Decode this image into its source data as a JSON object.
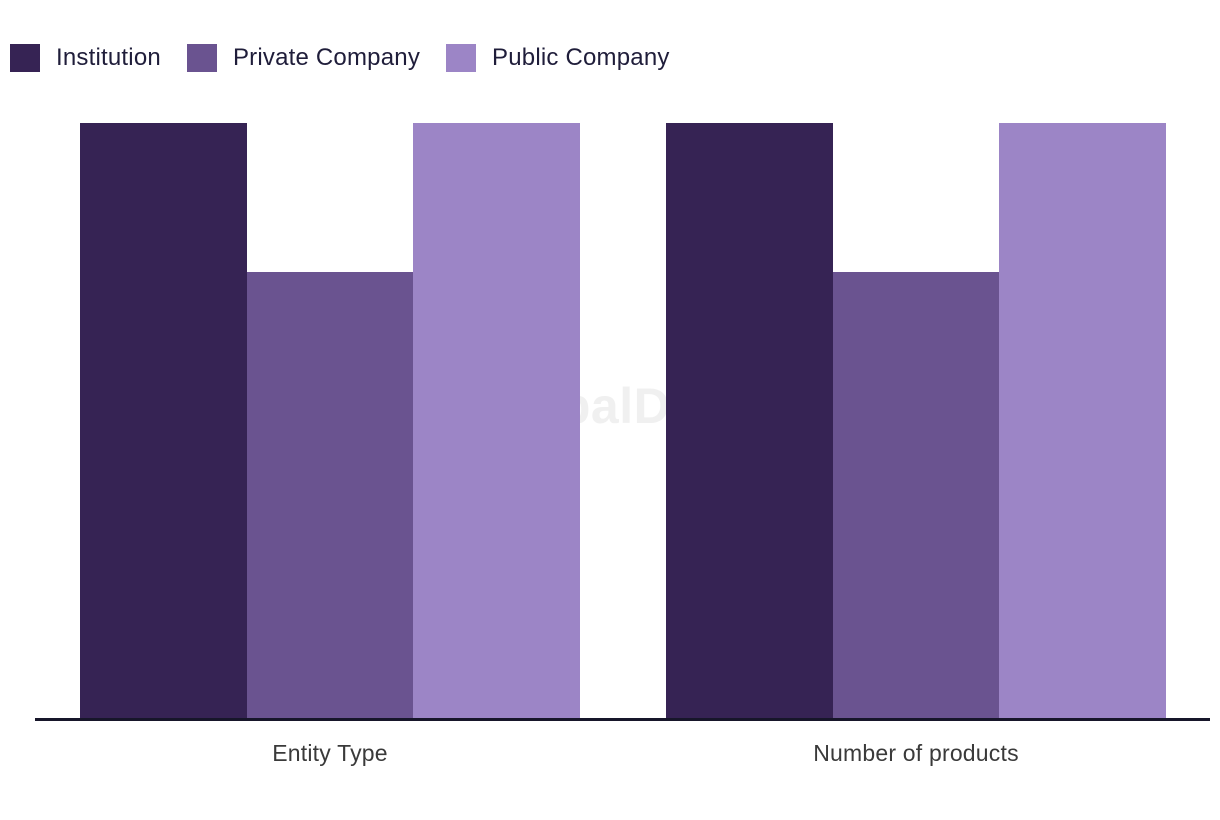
{
  "legend": {
    "items": [
      {
        "label": "Institution",
        "color": "#362354"
      },
      {
        "label": "Private Company",
        "color": "#6A5390"
      },
      {
        "label": "Public Company",
        "color": "#9C85C6"
      }
    ]
  },
  "watermark": {
    "text": "GlobalData"
  },
  "chart_data": {
    "type": "bar",
    "title": "",
    "xlabel": "",
    "ylabel": "",
    "categories": [
      "Entity Type",
      "Number of products"
    ],
    "series": [
      {
        "name": "Institution",
        "color": "#362354",
        "values": [
          4,
          4
        ]
      },
      {
        "name": "Private Company",
        "color": "#6A5390",
        "values": [
          3,
          3
        ]
      },
      {
        "name": "Public Company",
        "color": "#9C85C6",
        "values": [
          4,
          4
        ]
      }
    ],
    "ylim": [
      0,
      4
    ],
    "y_axis_visible": false,
    "gridlines": false,
    "legend_position": "top-left",
    "watermark_text": "GlobalData",
    "note": "No y-axis scale shown; values are relative bar heights (tall bars = 100% of plot height, medium bars = 75%)."
  },
  "colors": {
    "axis_line": "#17162A",
    "category_label_text": "#3A3A3A",
    "legend_text": "#1F1D3A",
    "watermark": "#CCCCCC",
    "background": "#FFFFFF"
  }
}
